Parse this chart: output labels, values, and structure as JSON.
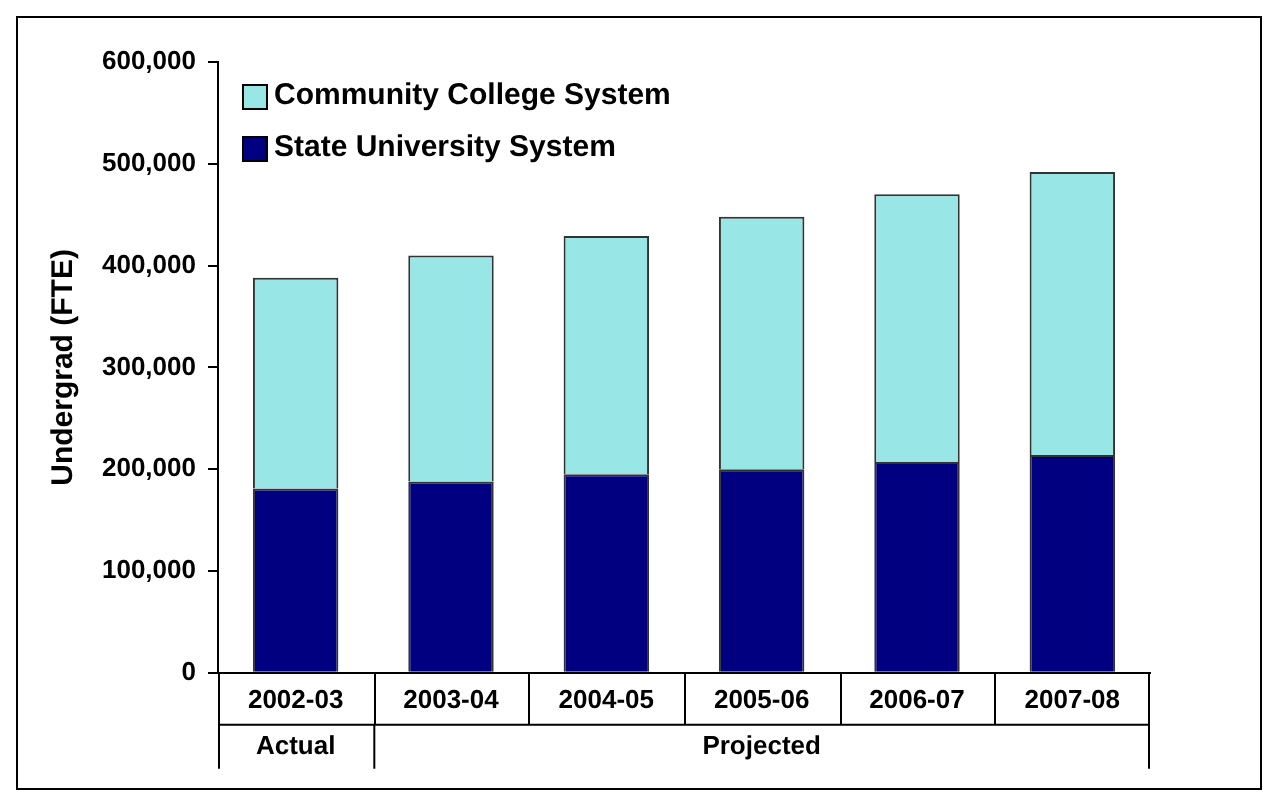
{
  "chart_data": {
    "type": "bar",
    "stacked": true,
    "ylabel": "Undergrad (FTE)",
    "categories": [
      "2002-03",
      "2003-04",
      "2004-05",
      "2005-06",
      "2006-07",
      "2007-08"
    ],
    "series": [
      {
        "name": "State University System",
        "color": "#000080",
        "values": [
          181000,
          188000,
          195000,
          200000,
          207000,
          214000
        ]
      },
      {
        "name": "Community College System",
        "color": "#99e6e6",
        "values": [
          207000,
          222000,
          234000,
          248000,
          263000,
          278000
        ]
      }
    ],
    "ylim": [
      0,
      600000
    ],
    "yticks": [
      0,
      {
        "value": 100000,
        "label": "100,000"
      },
      {
        "value": 200000,
        "label": "200,000"
      },
      {
        "value": 300000,
        "label": "300,000"
      },
      {
        "value": 400000,
        "label": "400,000"
      },
      {
        "value": 500000,
        "label": "500,000"
      },
      {
        "value": 600000,
        "label": "600,000"
      }
    ],
    "annotations": [
      "Actual",
      "Projected"
    ],
    "grid": false,
    "legend": "top left"
  }
}
